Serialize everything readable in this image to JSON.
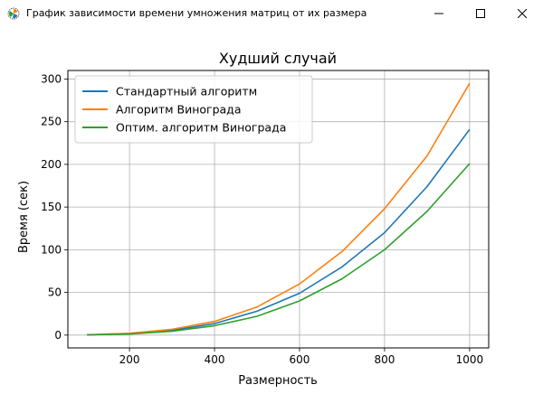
{
  "window": {
    "title": "График зависимости времени умножения матриц от их размера",
    "icon": "matplotlib-icon",
    "controls": [
      "minimize-icon",
      "maximize-icon",
      "close-icon"
    ]
  },
  "chart_data": {
    "type": "line",
    "title": "Худший случай",
    "xlabel": "Размерность",
    "ylabel": "Время (сек)",
    "xlim": [
      55,
      1045
    ],
    "ylim": [
      -15,
      310
    ],
    "xticks": [
      200,
      400,
      600,
      800,
      1000
    ],
    "yticks": [
      0,
      50,
      100,
      150,
      200,
      250,
      300
    ],
    "grid": true,
    "legend_position": "upper-left",
    "x": [
      100,
      200,
      300,
      400,
      500,
      600,
      700,
      800,
      900,
      1000
    ],
    "series": [
      {
        "name": "Стандартный алгоритм",
        "color": "#1f77b4",
        "values": [
          0.2,
          1.8,
          5.5,
          13.5,
          28,
          49,
          80,
          120,
          174,
          241
        ]
      },
      {
        "name": "Алгоритм Винограда",
        "color": "#ff7f0e",
        "values": [
          0.3,
          2.2,
          6.8,
          16,
          33,
          60,
          98,
          148,
          210,
          295
        ]
      },
      {
        "name": "Оптим. алгоритм Винограда",
        "color": "#2ca02c",
        "values": [
          0.2,
          1.3,
          4.5,
          11,
          22,
          40,
          66,
          100,
          145,
          201
        ]
      }
    ]
  }
}
